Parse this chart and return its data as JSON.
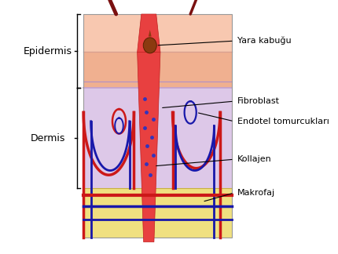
{
  "bg_color": "#ffffff",
  "layer_colors": {
    "epidermis_top": "#f8c8b0",
    "epidermis_mid": "#f0b090",
    "dermis": "#ddc8e8",
    "hypodermis": "#f0e080"
  },
  "wound_color": "#e84040",
  "wound_dark": "#c02020",
  "scab_color": "#8B3A10",
  "fibroblast_dot": "#3333bb",
  "vessel_red": "#cc1818",
  "vessel_blue": "#1818aa",
  "label_epidermis": "Epidermis",
  "label_dermis": "Dermis",
  "annot_yara": "Yara kabuğu",
  "annot_fibro": "Fibroblast",
  "annot_endo": "Endotel tomurcukları",
  "annot_kolla": "Kollajen",
  "annot_makro": "Makrofaj",
  "fontsize_label": 9,
  "fontsize_annot": 8
}
